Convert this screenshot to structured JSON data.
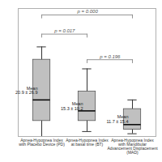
{
  "chart_data": {
    "type": "box",
    "categories": [
      "Apnea-Hypopnea Index\nwith Placebo Device (PD)",
      "Apnea-Hypopnea Index\nat basal time (BT)",
      "Apnea-Hypopnea Index\nwith Mandibular\nAdvancement Displacement\n(MAD)"
    ],
    "boxes": [
      {
        "min": 0,
        "q1": 8.5,
        "median": 20,
        "q3": 42,
        "max": 49
      },
      {
        "min": 2.7,
        "q1": 8.5,
        "median": 14,
        "q3": 24.6,
        "max": 37
      },
      {
        "min": 1.5,
        "q1": 3.8,
        "median": 6.5,
        "q3": 15,
        "max": 20
      }
    ],
    "mean_labels": [
      "Mean\n20.9 ± 26.9",
      "Mean\n15.3 ± 10.2",
      "Mean\n11.7 ± 15.4"
    ],
    "annotations": [
      {
        "text": "p = 0.000",
        "groups": [
          0,
          2
        ]
      },
      {
        "text": "p = 0.017",
        "groups": [
          0,
          1
        ]
      },
      {
        "text": "p = 0.196",
        "groups": [
          1,
          2
        ]
      }
    ],
    "color": "#c0c0c0",
    "ylim": [
      0,
      70
    ],
    "tick_labels": "x"
  }
}
